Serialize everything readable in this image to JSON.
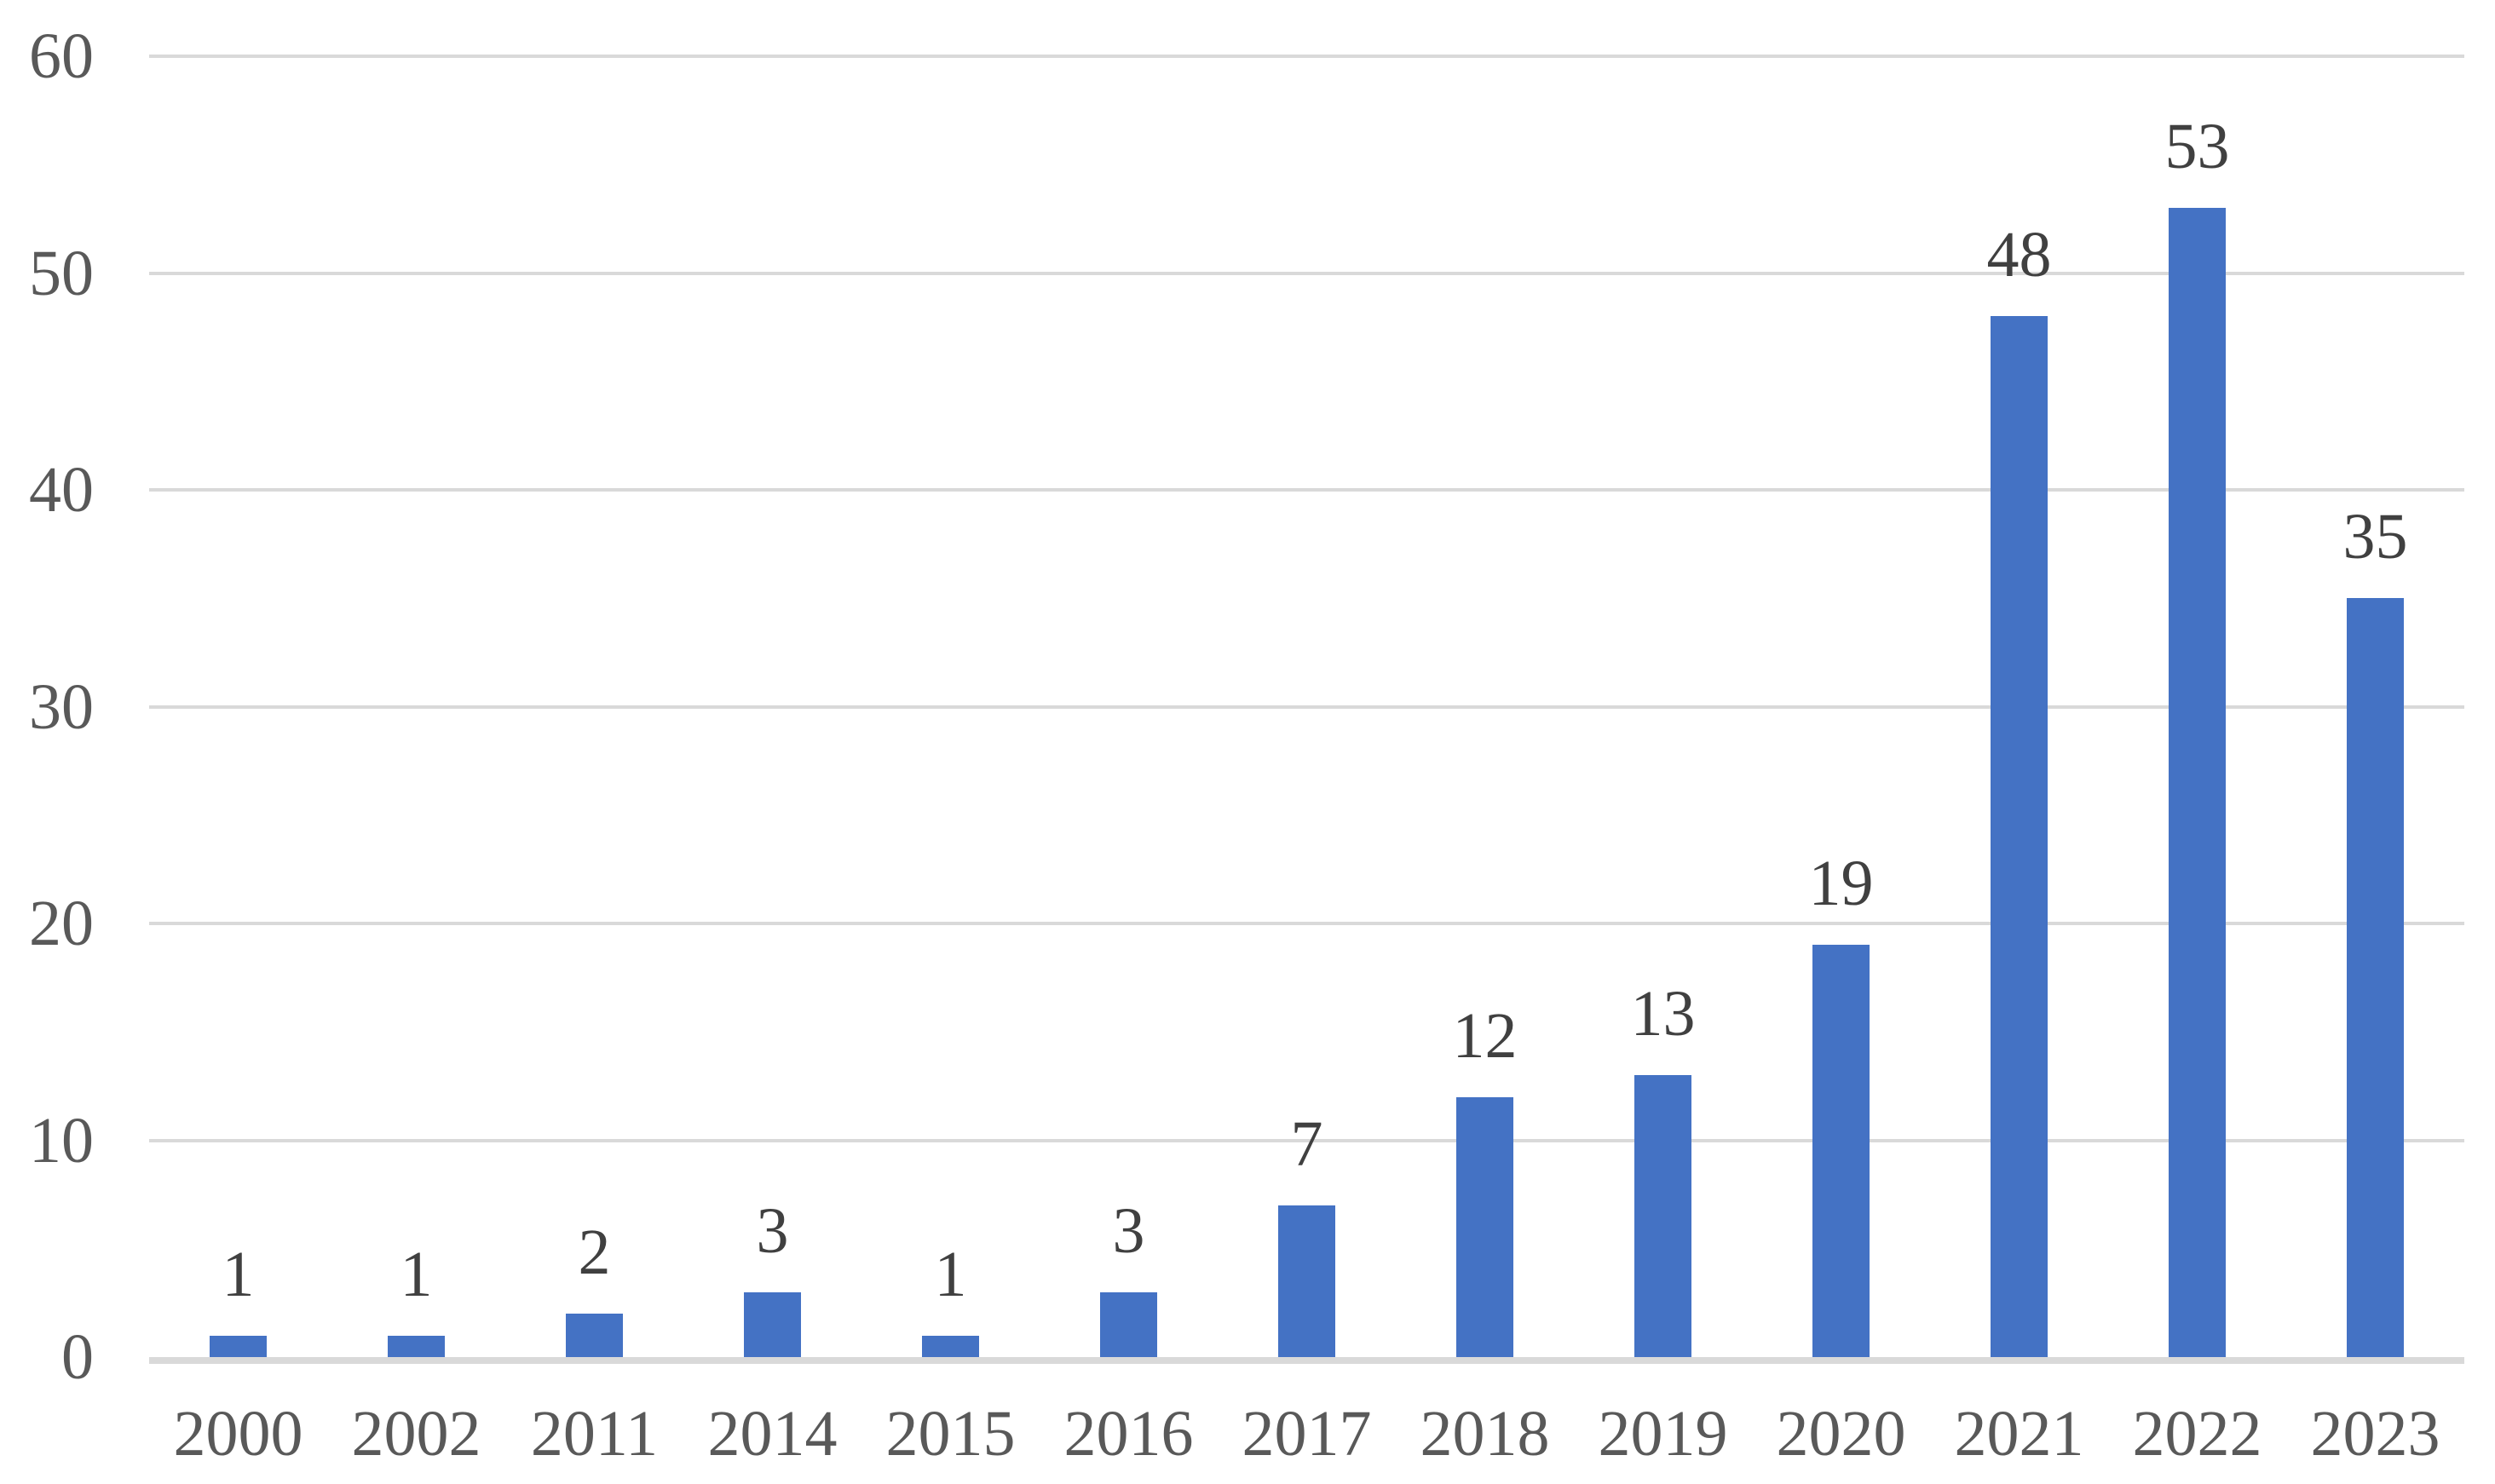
{
  "chart_data": {
    "type": "bar",
    "title": "",
    "xlabel": "",
    "ylabel": "",
    "categories": [
      "2000",
      "2002",
      "2011",
      "2014",
      "2015",
      "2016",
      "2017",
      "2018",
      "2019",
      "2020",
      "2021",
      "2022",
      "2023"
    ],
    "values": [
      1,
      1,
      2,
      3,
      1,
      3,
      7,
      12,
      13,
      19,
      48,
      53,
      35
    ],
    "data_labels_shown": true,
    "ylim": [
      0,
      60
    ],
    "yticks": [
      0,
      10,
      20,
      30,
      40,
      50,
      60
    ],
    "grid": "horizontal",
    "legend": "none",
    "colors": {
      "bar": "#4472C4",
      "gridline": "#D9D9D9",
      "axis_line": "#D9D9D9",
      "axis_text": "#595959",
      "data_label_text": "#404040",
      "background": "#FFFFFF"
    }
  }
}
